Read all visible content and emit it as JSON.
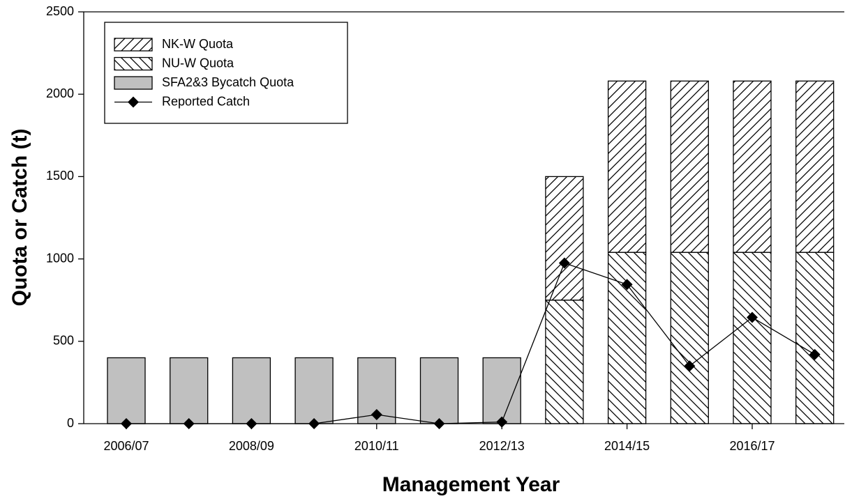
{
  "chart_data": {
    "type": "bar",
    "stacked": true,
    "x_label": "Management Year",
    "y_label": "Quota or Catch (t)",
    "categories": [
      "2006/07",
      null,
      "2008/09",
      null,
      "2010/11",
      null,
      "2012/13",
      null,
      "2014/15",
      null,
      "2016/17",
      null
    ],
    "series": [
      {
        "name": "NK-W Quota",
        "type": "bar",
        "color": "#000000",
        "hatch": "/",
        "values": [
          null,
          null,
          null,
          null,
          null,
          null,
          null,
          750,
          1040,
          1040,
          1040,
          1040
        ]
      },
      {
        "name": "NU-W Quota",
        "type": "bar",
        "color": "#000000",
        "hatch": "\\",
        "values": [
          null,
          null,
          null,
          null,
          null,
          null,
          null,
          750,
          1040,
          1040,
          1040,
          1040
        ]
      },
      {
        "name": "SFA2&3 Bycatch Quota",
        "type": "bar",
        "color": "#c0c0c0",
        "values": [
          400,
          400,
          400,
          400,
          400,
          400,
          400,
          null,
          null,
          null,
          null,
          null
        ]
      },
      {
        "name": "Reported Catch",
        "type": "line",
        "color": "#000000",
        "marker": "diamond",
        "values": [
          0,
          0,
          0,
          0,
          55,
          0,
          10,
          975,
          845,
          350,
          645,
          420
        ]
      }
    ],
    "ylim": [
      0,
      2500
    ],
    "yticks": [
      0,
      500,
      1000,
      1500,
      2000,
      2500
    ],
    "grid": false,
    "legend": "upper left"
  }
}
